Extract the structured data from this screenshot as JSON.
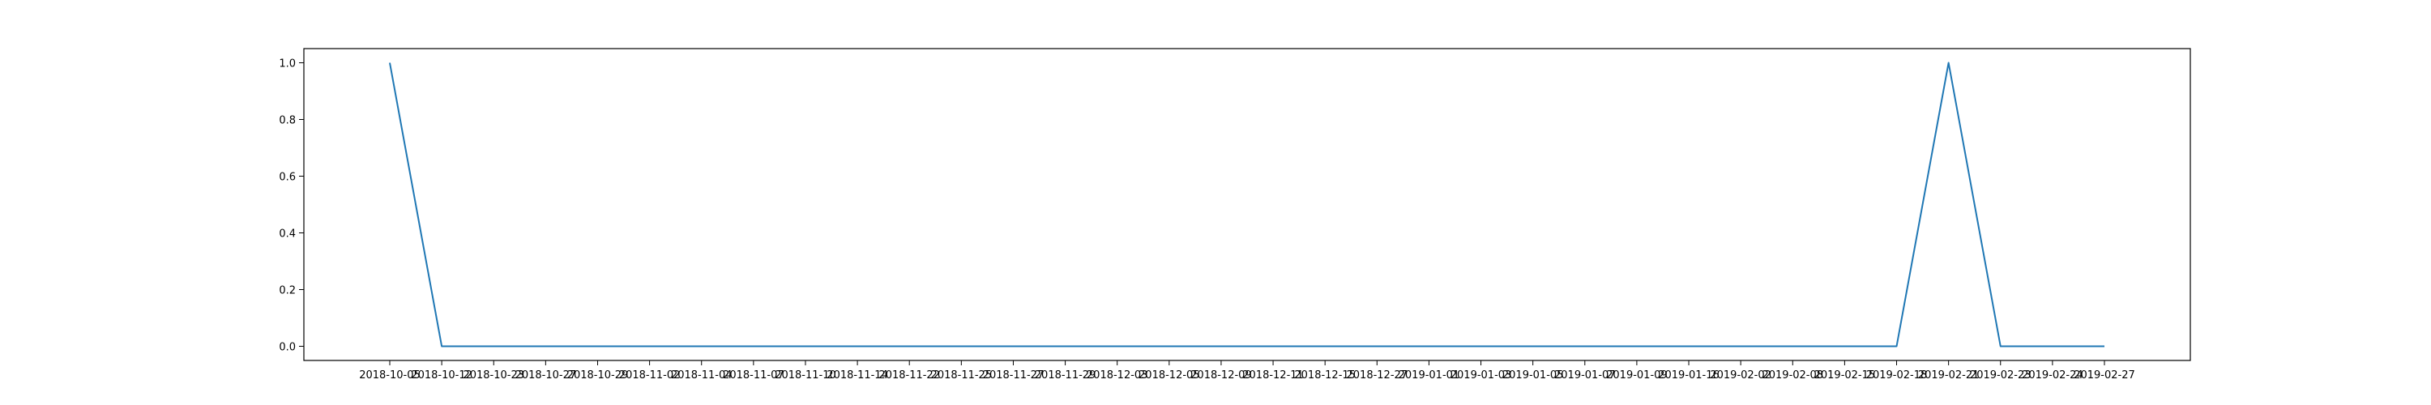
{
  "chart_data": {
    "type": "line",
    "title": "",
    "xlabel": "",
    "ylabel": "",
    "x": [
      "2018-10-05",
      "2018-10-12",
      "2018-10-23",
      "2018-10-27",
      "2018-10-29",
      "2018-11-02",
      "2018-11-04",
      "2018-11-07",
      "2018-11-10",
      "2018-11-14",
      "2018-11-22",
      "2018-11-25",
      "2018-11-27",
      "2018-11-29",
      "2018-12-03",
      "2018-12-05",
      "2018-12-09",
      "2018-12-11",
      "2018-12-15",
      "2018-12-27",
      "2019-01-01",
      "2019-01-03",
      "2019-01-05",
      "2019-01-07",
      "2019-01-09",
      "2019-01-16",
      "2019-02-02",
      "2019-02-08",
      "2019-02-15",
      "2019-02-18",
      "2019-02-21",
      "2019-02-23",
      "2019-02-24",
      "2019-02-27"
    ],
    "series": [
      {
        "values": [
          1,
          0,
          0,
          0,
          0,
          0,
          0,
          0,
          0,
          0,
          0,
          0,
          0,
          0,
          0,
          0,
          0,
          0,
          0,
          0,
          0,
          0,
          0,
          0,
          0,
          0,
          0,
          0,
          0,
          0,
          1,
          0,
          0,
          0
        ],
        "color": "#1f77b4"
      }
    ],
    "ylim": [
      -0.05,
      1.05
    ],
    "yticks": [
      0.0,
      0.2,
      0.4,
      0.6,
      0.8,
      1.0
    ],
    "ytick_labels": [
      "0.0",
      "0.2",
      "0.4",
      "0.6",
      "0.8",
      "1.0"
    ],
    "grid": false,
    "legend": "none"
  }
}
